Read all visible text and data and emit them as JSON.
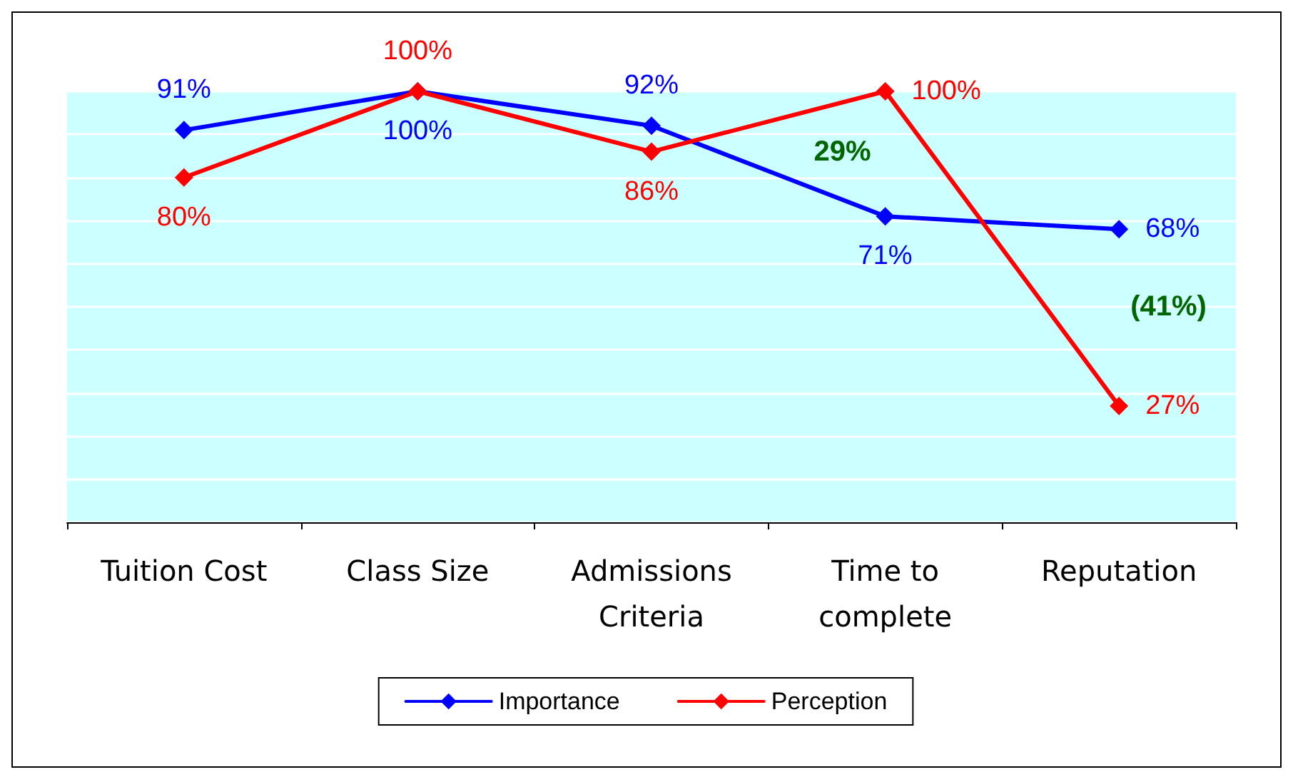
{
  "chart_data": {
    "type": "line",
    "categories": [
      "Tuition Cost",
      "Class Size",
      "Admissions\nCriteria",
      "Time to\ncomplete",
      "Reputation"
    ],
    "series": [
      {
        "name": "Importance",
        "color": "#0000ff",
        "values": [
          91,
          100,
          92,
          71,
          68
        ],
        "value_labels": [
          "91%",
          "100%",
          "92%",
          "71%",
          "68%"
        ]
      },
      {
        "name": "Perception",
        "color": "#ff0000",
        "values": [
          80,
          100,
          86,
          100,
          27
        ],
        "value_labels": [
          "80%",
          "100%",
          "86%",
          "100%",
          "27%"
        ]
      }
    ],
    "ylim": [
      0,
      100
    ],
    "yticks": [
      {
        "value": 0,
        "label": null
      },
      {
        "value": 10,
        "label": null
      },
      {
        "value": 20,
        "label": null
      },
      {
        "value": 30,
        "label": null
      },
      {
        "value": 40,
        "label": null
      },
      {
        "value": 50,
        "label": null
      },
      {
        "value": 60,
        "label": null
      },
      {
        "value": 70,
        "label": null
      },
      {
        "value": 80,
        "label": null
      },
      {
        "value": 90,
        "label": null
      },
      {
        "value": 100,
        "label": null
      }
    ],
    "tick_labels": "x",
    "grid": "y",
    "legend": "bottom",
    "marker": "diamond",
    "line_style": "solid",
    "annotations": [
      "29%",
      "(41%)"
    ]
  }
}
